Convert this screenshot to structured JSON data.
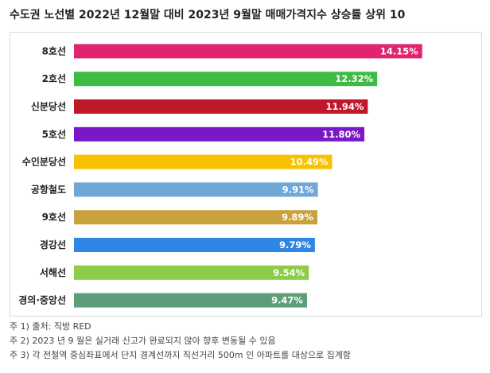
{
  "chart_data": {
    "type": "bar",
    "orientation": "horizontal",
    "title": "수도권 노선별 2022년 12월말 대비 2023년 9월말 매매가격지수 상승률 상위 10",
    "categories": [
      "8호선",
      "2호선",
      "신분당선",
      "5호선",
      "수인분당선",
      "공항철도",
      "9호선",
      "경강선",
      "서해선",
      "경의·중앙선"
    ],
    "values": [
      14.15,
      12.32,
      11.94,
      11.8,
      10.49,
      9.91,
      9.89,
      9.79,
      9.54,
      9.47
    ],
    "value_labels": [
      "14.15%",
      "12.32%",
      "11.94%",
      "11.80%",
      "10.49%",
      "9.91%",
      "9.89%",
      "9.79%",
      "9.54%",
      "9.47%"
    ],
    "colors": [
      "#e0246e",
      "#3dbb45",
      "#c0182a",
      "#7a18c8",
      "#f7c200",
      "#6fa8d6",
      "#c8a23e",
      "#2e86e6",
      "#8ccc48",
      "#5c9e78"
    ],
    "xlim": [
      0,
      16
    ],
    "xlabel": "",
    "ylabel": ""
  },
  "notes": [
    "주 1) 출처: 직방 RED",
    "주 2) 2023 년 9 월은 실거래 신고가 완료되지 않아 향후 변동될 수 있음",
    "주 3) 각 전철역 중심좌표에서 단지 경계선까지 직선거리 500m 인 아파트를 대상으로 집계함"
  ]
}
